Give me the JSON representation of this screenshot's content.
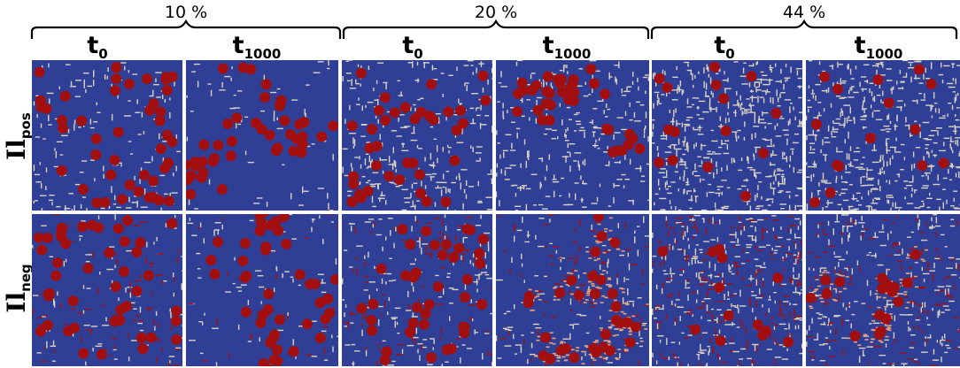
{
  "groups": [
    {
      "label": "10 %"
    },
    {
      "label": "20 %"
    },
    {
      "label": "44 %"
    }
  ],
  "time_labels": {
    "t": "t",
    "sub0": "0",
    "sub1000": "1000"
  },
  "rows": [
    {
      "base": "Il",
      "sub": "pos"
    },
    {
      "base": "Il",
      "sub": "neg"
    }
  ],
  "colors": {
    "background": "#2f3f96",
    "particle": "#a30f0f",
    "ligand_pos": "#d9d2c2",
    "ligand_neg_patch": "#e8a07a",
    "divider": "#ffffff"
  },
  "panels": [
    {
      "row": "pos",
      "group": "10 %",
      "time": "t0",
      "particle_level": 0.9,
      "ligand_level": 0.3,
      "clustered": false,
      "patchy": false
    },
    {
      "row": "pos",
      "group": "10 %",
      "time": "t1000",
      "particle_level": 0.9,
      "ligand_level": 0.05,
      "clustered": true,
      "patchy": false
    },
    {
      "row": "pos",
      "group": "20 %",
      "time": "t0",
      "particle_level": 0.75,
      "ligand_level": 0.55,
      "clustered": false,
      "patchy": false
    },
    {
      "row": "pos",
      "group": "20 %",
      "time": "t1000",
      "particle_level": 0.75,
      "ligand_level": 0.5,
      "clustered": true,
      "patchy": false
    },
    {
      "row": "pos",
      "group": "44 %",
      "time": "t0",
      "particle_level": 0.25,
      "ligand_level": 1.0,
      "clustered": false,
      "patchy": false
    },
    {
      "row": "pos",
      "group": "44 %",
      "time": "t1000",
      "particle_level": 0.25,
      "ligand_level": 1.0,
      "clustered": false,
      "patchy": false
    },
    {
      "row": "neg",
      "group": "10 %",
      "time": "t0",
      "particle_level": 0.9,
      "ligand_level": 0.3,
      "clustered": false,
      "patchy": false
    },
    {
      "row": "neg",
      "group": "10 %",
      "time": "t1000",
      "particle_level": 0.9,
      "ligand_level": 0.15,
      "clustered": true,
      "patchy": false
    },
    {
      "row": "neg",
      "group": "20 %",
      "time": "t0",
      "particle_level": 0.8,
      "ligand_level": 0.5,
      "clustered": false,
      "patchy": false
    },
    {
      "row": "neg",
      "group": "20 %",
      "time": "t1000",
      "particle_level": 0.6,
      "ligand_level": 0.35,
      "clustered": true,
      "patchy": true
    },
    {
      "row": "neg",
      "group": "44 %",
      "time": "t0",
      "particle_level": 0.2,
      "ligand_level": 1.0,
      "clustered": false,
      "patchy": false
    },
    {
      "row": "neg",
      "group": "44 %",
      "time": "t1000",
      "particle_level": 0.3,
      "ligand_level": 0.7,
      "clustered": true,
      "patchy": true
    }
  ]
}
